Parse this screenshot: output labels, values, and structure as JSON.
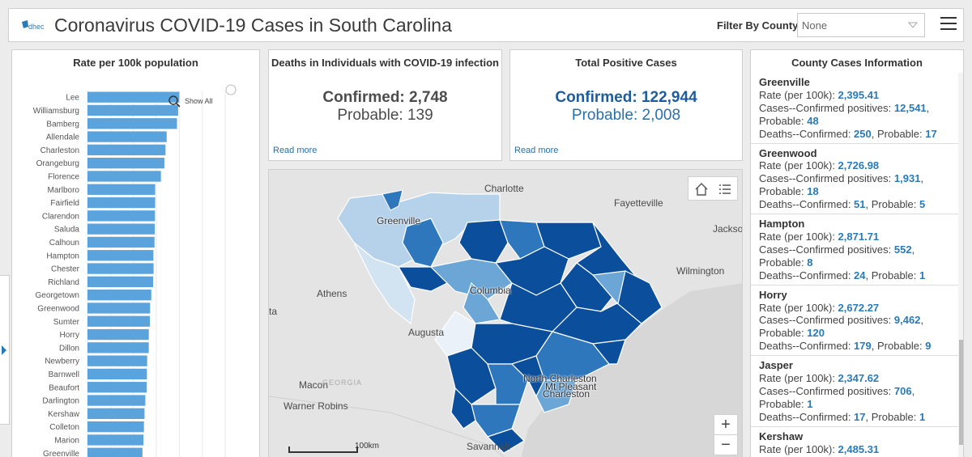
{
  "header": {
    "title": "Coronavirus COVID-19 Cases in South Carolina",
    "logo_text": "dhec",
    "filter_label": "Filter By County",
    "filter_value": "None"
  },
  "chart": {
    "title": "Rate per 100k population",
    "show_all_label": "Show All"
  },
  "chart_data": {
    "type": "bar",
    "orientation": "horizontal",
    "title": "Rate per 100k population",
    "categories": [
      "Lee",
      "Williamsburg",
      "Bamberg",
      "Allendale",
      "Charleston",
      "Orangeburg",
      "Florence",
      "Marlboro",
      "Fairfield",
      "Clarendon",
      "Saluda",
      "Calhoun",
      "Hampton",
      "Chester",
      "Richland",
      "Georgetown",
      "Greenwood",
      "Sumter",
      "Horry",
      "Dillon",
      "Newberry",
      "Barnwell",
      "Beaufort",
      "Darlington",
      "Kershaw",
      "Colleton",
      "Marion",
      "Greenville"
    ],
    "values": [
      4000,
      3950,
      3900,
      3450,
      3400,
      3350,
      3200,
      2950,
      2950,
      2940,
      2930,
      2920,
      2872,
      2880,
      2860,
      2780,
      2727,
      2720,
      2672,
      2670,
      2600,
      2590,
      2580,
      2520,
      2485,
      2460,
      2440,
      2395
    ],
    "xlim": [
      0,
      6000
    ],
    "color": "#5aa3dc",
    "grid": true
  },
  "deaths": {
    "title": "Deaths in Individuals with COVID-19 infection",
    "confirmed": "Confirmed: 2,748",
    "probable": "Probable: 139",
    "read_more": "Read more",
    "color": "#4c4c4c"
  },
  "cases": {
    "title": "Total Positive Cases",
    "confirmed": "Confirmed: 122,944",
    "probable": "Probable: 2,008",
    "read_more": "Read more",
    "color": "#1f5c99"
  },
  "map": {
    "labels": {
      "charlotte": "Charlotte",
      "fayetteville": "Fayetteville",
      "jacksonville": "Jackso",
      "greenville": "Greenville",
      "wilmington": "Wilmington",
      "athens": "Athens",
      "columbia": "Columbia",
      "augusta": "Augusta",
      "atlanta_fragment": "ta",
      "macon": "Macon",
      "georgia": "GEORGIA",
      "warner_robins": "Warner Robins",
      "north_charleston": "North Charleston",
      "mt_pleasant": "Mt Pleasant",
      "charleston": "Charleston",
      "savannah": "Savannah"
    },
    "scale_label": "100km",
    "zoom_in": "+",
    "zoom_out": "−",
    "choropleth_colors": [
      "#0b4f9c",
      "#2e77bd",
      "#6ba6d6",
      "#b6d2ea",
      "#eaf1f9"
    ]
  },
  "county_info": {
    "title": "County Cases Information",
    "rate_label": "Rate (per 100k): ",
    "cases_label": "Cases--Confirmed positives: ",
    "probable_label": "Probable: ",
    "deaths_label": "Deaths--Confirmed: ",
    "counties": [
      {
        "name": "Greenville",
        "rate": "2,395.41",
        "cases": "12,541",
        "probable": "48",
        "deaths": "250",
        "deaths_probable": "17"
      },
      {
        "name": "Greenwood",
        "rate": "2,726.98",
        "cases": "1,931",
        "probable": "18",
        "deaths": "51",
        "deaths_probable": "5"
      },
      {
        "name": "Hampton",
        "rate": "2,871.71",
        "cases": "552",
        "probable": "8",
        "deaths": "24",
        "deaths_probable": "1"
      },
      {
        "name": "Horry",
        "rate": "2,672.27",
        "cases": "9,462",
        "probable": "120",
        "deaths": "179",
        "deaths_probable": "9"
      },
      {
        "name": "Jasper",
        "rate": "2,347.62",
        "cases": "706",
        "probable": "1",
        "deaths": "17",
        "deaths_probable": "1"
      },
      {
        "name": "Kershaw",
        "rate": "2,485.31",
        "cases": "",
        "probable": "",
        "deaths": "",
        "deaths_probable": ""
      }
    ]
  }
}
